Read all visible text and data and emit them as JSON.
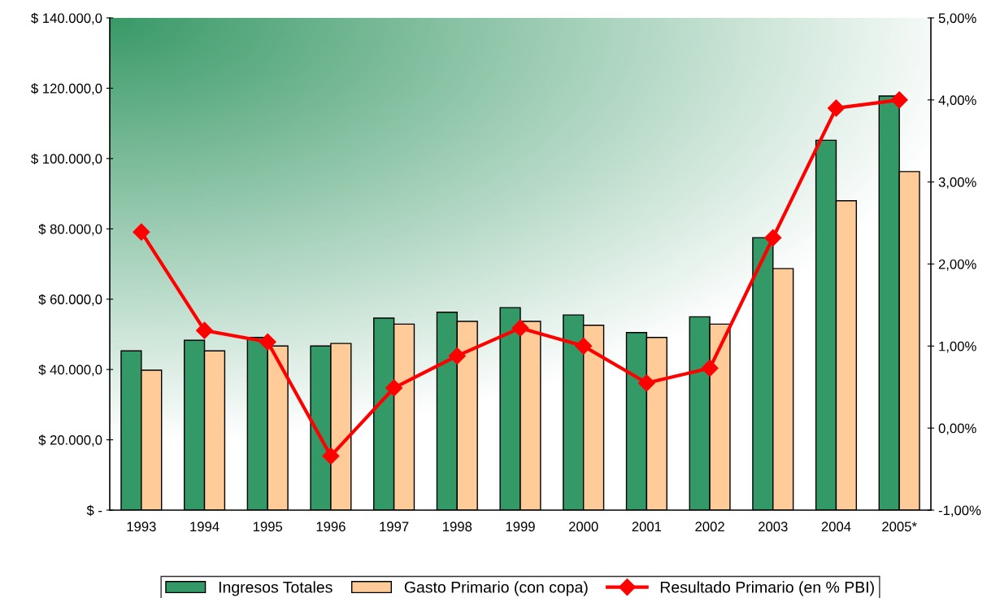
{
  "chart_data": {
    "type": "bar",
    "categories": [
      "1993",
      "1994",
      "1995",
      "1996",
      "1997",
      "1998",
      "1999",
      "2000",
      "2001",
      "2002",
      "2003",
      "2004",
      "2005*"
    ],
    "series": [
      {
        "name": "Ingresos Totales",
        "color": "#339966",
        "values": [
          45300,
          48300,
          49100,
          46700,
          54600,
          56300,
          57600,
          55500,
          50500,
          55000,
          77500,
          105200,
          117800
        ]
      },
      {
        "name": "Gasto Primario (con copa)",
        "color": "#ffcc99",
        "values": [
          39800,
          45300,
          46700,
          47400,
          52900,
          53700,
          53700,
          52600,
          49100,
          52900,
          68700,
          88000,
          96300
        ]
      },
      {
        "name": "Resultado Primario (en % PBI)",
        "type": "line",
        "axis": "y2",
        "color": "#ff0000",
        "marker": "diamond",
        "values": [
          2.39,
          1.19,
          1.05,
          -0.34,
          0.49,
          0.88,
          1.22,
          1.0,
          0.55,
          0.73,
          2.32,
          3.9,
          4.0
        ]
      }
    ],
    "ylim": [
      0,
      140000
    ],
    "yticks": [
      {
        "value": 0,
        "label": "$ -"
      },
      {
        "value": 20000,
        "label": "$ 20.000,0"
      },
      {
        "value": 40000,
        "label": "$ 40.000,0"
      },
      {
        "value": 60000,
        "label": "$ 60.000,0"
      },
      {
        "value": 80000,
        "label": "$ 80.000,0"
      },
      {
        "value": 100000,
        "label": "$ 100.000,0"
      },
      {
        "value": 120000,
        "label": "$ 120.000,0"
      },
      {
        "value": 140000,
        "label": "$ 140.000,0"
      }
    ],
    "y2lim": [
      -1,
      5
    ],
    "y2ticks": [
      {
        "value": -1,
        "label": "-1,00%"
      },
      {
        "value": 0,
        "label": "0,00%"
      },
      {
        "value": 1,
        "label": "1,00%"
      },
      {
        "value": 2,
        "label": "2,00%"
      },
      {
        "value": 3,
        "label": "3,00%"
      },
      {
        "value": 4,
        "label": "4,00%"
      },
      {
        "value": 5,
        "label": "5,00%"
      }
    ],
    "grid": false,
    "legend": "bottom"
  }
}
